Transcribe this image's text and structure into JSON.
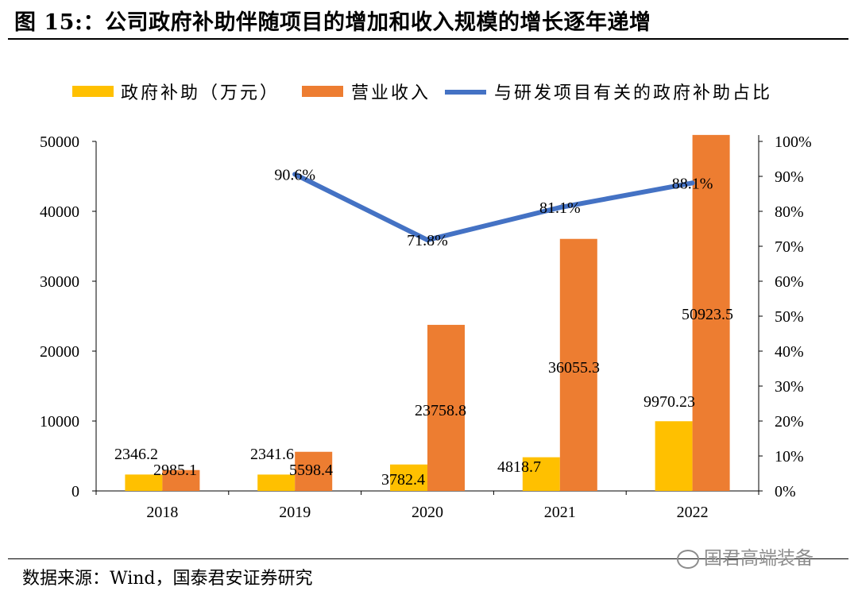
{
  "figure": {
    "title": "图 15:：公司政府补助伴随项目的增加和收入规模的增长逐年递增",
    "source": "数据来源：Wind，国泰君安证券研究",
    "watermark": "国君高端装备"
  },
  "colors": {
    "subsidy": "#FFC000",
    "revenue": "#ED7D31",
    "ratio": "#4472C4",
    "axis": "#000000"
  },
  "chart_data": {
    "type": "bar",
    "categories": [
      "2018",
      "2019",
      "2020",
      "2021",
      "2022"
    ],
    "series": [
      {
        "name": "政府补助（万元）",
        "kind": "bar",
        "axis": "left",
        "values": [
          2346.2,
          2341.6,
          3782.4,
          4818.7,
          9970.23
        ],
        "labels": [
          "2346.2",
          "2341.6",
          "3782.4",
          "4818.7",
          "9970.23"
        ]
      },
      {
        "name": "营业收入",
        "kind": "bar",
        "axis": "left",
        "values": [
          2985.1,
          5598.4,
          23758.8,
          36055.3,
          50923.5
        ],
        "labels": [
          "2985.1",
          "5598.4",
          "23758.8",
          "36055.3",
          "50923.5"
        ]
      },
      {
        "name": "与研发项目有关的政府补助占比",
        "kind": "line",
        "axis": "right",
        "x": [
          "2019",
          "2020",
          "2021",
          "2022"
        ],
        "values": [
          90.6,
          71.8,
          81.1,
          88.1
        ],
        "labels": [
          "90.6%",
          "71.8%",
          "81.1%",
          "88.1%"
        ]
      }
    ],
    "y_left": {
      "ylim": [
        0,
        50000
      ],
      "ticks": [
        "0",
        "10000",
        "20000",
        "30000",
        "40000",
        "50000"
      ]
    },
    "y_right": {
      "ylim": [
        0,
        100
      ],
      "ticks": [
        "0%",
        "10%",
        "20%",
        "30%",
        "40%",
        "50%",
        "60%",
        "70%",
        "80%",
        "90%",
        "100%"
      ]
    },
    "legend_position": "top"
  }
}
